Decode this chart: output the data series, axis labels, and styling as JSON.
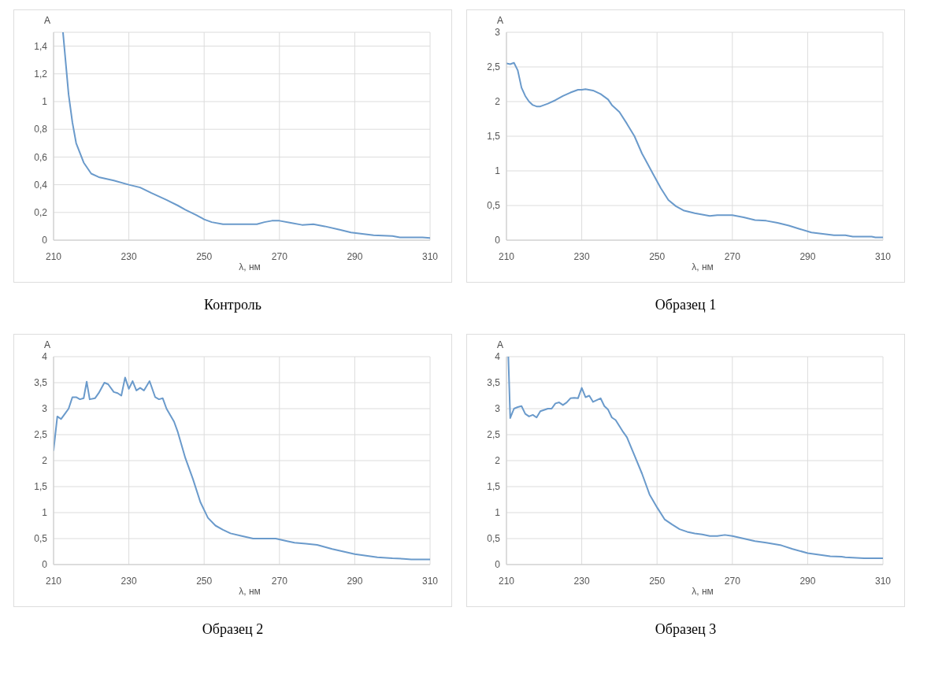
{
  "chart_data": [
    {
      "type": "line",
      "title": "Контроль",
      "xlabel": "λ, нм",
      "ylabel": "A",
      "xlim": [
        210,
        310
      ],
      "xticks": [
        210,
        230,
        250,
        270,
        290,
        310
      ],
      "ylim": [
        0,
        1.5
      ],
      "yticks": [
        0,
        {
          "value": 0.2,
          "label": "0,2"
        },
        {
          "value": 0.4,
          "label": "0,4"
        },
        {
          "value": 0.6,
          "label": "0,6"
        },
        {
          "value": 0.8,
          "label": "0,8"
        },
        1,
        {
          "value": 1.2,
          "label": "1,2"
        },
        {
          "value": 1.4,
          "label": "1,4"
        }
      ],
      "grid": true,
      "marker": "none",
      "line_style": "solid",
      "series": [
        {
          "color": "#6a9acb",
          "x": [
            212.5,
            214,
            215,
            216,
            218,
            220,
            222,
            226,
            230,
            233,
            236,
            240,
            243,
            245,
            248,
            250,
            252,
            255,
            258,
            264,
            266,
            268,
            270,
            273,
            276,
            279,
            282,
            286,
            289,
            292,
            295,
            300,
            302,
            308,
            310
          ],
          "values": [
            1.5,
            1.05,
            0.85,
            0.7,
            0.56,
            0.48,
            0.455,
            0.43,
            0.4,
            0.38,
            0.34,
            0.29,
            0.25,
            0.22,
            0.18,
            0.15,
            0.13,
            0.115,
            0.115,
            0.115,
            0.13,
            0.14,
            0.14,
            0.125,
            0.11,
            0.115,
            0.1,
            0.075,
            0.055,
            0.045,
            0.035,
            0.03,
            0.02,
            0.02,
            0.015
          ]
        }
      ]
    },
    {
      "type": "line",
      "title": "Образец 1",
      "xlabel": "λ, нм",
      "ylabel": "A",
      "xlim": [
        210,
        310
      ],
      "xticks": [
        210,
        230,
        250,
        270,
        290,
        310
      ],
      "ylim": [
        0,
        3
      ],
      "yticks": [
        0,
        {
          "value": 0.5,
          "label": "0,5"
        },
        1,
        {
          "value": 1.5,
          "label": "1,5"
        },
        2,
        {
          "value": 2.5,
          "label": "2,5"
        },
        3
      ],
      "grid": true,
      "marker": "none",
      "line_style": "solid",
      "series": [
        {
          "color": "#6a9acb",
          "x": [
            210,
            211,
            212,
            213,
            214,
            215,
            216,
            217,
            218,
            219,
            221,
            223,
            225,
            227,
            229,
            230,
            231,
            233,
            235,
            237,
            238,
            240,
            242,
            244,
            246,
            247,
            249,
            251,
            253,
            255,
            257,
            260,
            262,
            264,
            266,
            270,
            273,
            276,
            279,
            282,
            285,
            288,
            291,
            294,
            297,
            300,
            302,
            307,
            308,
            310
          ],
          "values": [
            2.55,
            2.54,
            2.56,
            2.45,
            2.2,
            2.08,
            2.0,
            1.95,
            1.93,
            1.93,
            1.97,
            2.02,
            2.08,
            2.13,
            2.17,
            2.17,
            2.18,
            2.16,
            2.11,
            2.03,
            1.95,
            1.85,
            1.68,
            1.5,
            1.25,
            1.15,
            0.95,
            0.75,
            0.58,
            0.49,
            0.43,
            0.39,
            0.37,
            0.35,
            0.36,
            0.36,
            0.33,
            0.29,
            0.28,
            0.25,
            0.21,
            0.16,
            0.11,
            0.09,
            0.07,
            0.07,
            0.05,
            0.05,
            0.04,
            0.04
          ]
        }
      ]
    },
    {
      "type": "line",
      "title": "Образец 2",
      "xlabel": "λ, нм",
      "ylabel": "A",
      "xlim": [
        210,
        310
      ],
      "xticks": [
        210,
        230,
        250,
        270,
        290,
        310
      ],
      "ylim": [
        0,
        4
      ],
      "yticks": [
        0,
        {
          "value": 0.5,
          "label": "0,5"
        },
        1,
        {
          "value": 1.5,
          "label": "1,5"
        },
        2,
        {
          "value": 2.5,
          "label": "2,5"
        },
        3,
        {
          "value": 3.5,
          "label": "3,5"
        },
        4
      ],
      "grid": true,
      "marker": "none",
      "line_style": "solid",
      "series": [
        {
          "color": "#6a9acb",
          "x": [
            210,
            211,
            212,
            213,
            214,
            215,
            216,
            217,
            218,
            218.8,
            219.6,
            221,
            222,
            223.5,
            224.5,
            226,
            227,
            228,
            229,
            230,
            231,
            232,
            233,
            234,
            235.5,
            237,
            238,
            239,
            240,
            242,
            243,
            245,
            247,
            249,
            251,
            253,
            255,
            257,
            260,
            263,
            266,
            269,
            272,
            274,
            277,
            280,
            284,
            287,
            290,
            293,
            296,
            300,
            303,
            305,
            310
          ],
          "values": [
            2.2,
            2.85,
            2.8,
            2.9,
            3.0,
            3.22,
            3.22,
            3.18,
            3.2,
            3.52,
            3.18,
            3.2,
            3.3,
            3.5,
            3.47,
            3.32,
            3.3,
            3.25,
            3.6,
            3.38,
            3.53,
            3.35,
            3.4,
            3.35,
            3.53,
            3.22,
            3.18,
            3.2,
            3.0,
            2.75,
            2.55,
            2.05,
            1.65,
            1.2,
            0.9,
            0.75,
            0.67,
            0.6,
            0.55,
            0.5,
            0.5,
            0.5,
            0.45,
            0.42,
            0.4,
            0.38,
            0.3,
            0.25,
            0.2,
            0.17,
            0.14,
            0.12,
            0.11,
            0.1,
            0.1
          ]
        }
      ]
    },
    {
      "type": "line",
      "title": "Образец 3",
      "xlabel": "λ, нм",
      "ylabel": "A",
      "xlim": [
        210,
        310
      ],
      "xticks": [
        210,
        230,
        250,
        270,
        290,
        310
      ],
      "ylim": [
        0,
        4
      ],
      "yticks": [
        0,
        {
          "value": 0.5,
          "label": "0,5"
        },
        1,
        {
          "value": 1.5,
          "label": "1,5"
        },
        2,
        {
          "value": 2.5,
          "label": "2,5"
        },
        3,
        {
          "value": 3.5,
          "label": "3,5"
        },
        4
      ],
      "grid": true,
      "marker": "none",
      "line_style": "solid",
      "series": [
        {
          "color": "#6a9acb",
          "x": [
            210.5,
            211,
            212,
            213,
            214,
            215,
            216,
            217,
            218,
            219,
            221,
            222,
            223,
            224,
            225,
            226,
            227,
            228,
            229,
            230,
            231,
            232,
            233,
            235,
            236,
            237,
            238,
            239,
            241,
            242,
            244,
            246,
            248,
            250,
            252,
            254,
            256,
            258,
            260,
            262,
            264,
            266,
            268,
            270,
            273,
            276,
            279,
            283,
            286,
            290,
            293,
            296,
            299,
            300,
            303,
            305,
            310
          ],
          "values": [
            4.0,
            2.82,
            3.0,
            3.03,
            3.05,
            2.9,
            2.85,
            2.88,
            2.83,
            2.95,
            3.0,
            3.0,
            3.1,
            3.12,
            3.07,
            3.12,
            3.2,
            3.21,
            3.2,
            3.4,
            3.22,
            3.25,
            3.13,
            3.2,
            3.05,
            2.98,
            2.83,
            2.78,
            2.55,
            2.45,
            2.1,
            1.75,
            1.35,
            1.1,
            0.87,
            0.77,
            0.68,
            0.63,
            0.6,
            0.58,
            0.55,
            0.55,
            0.57,
            0.55,
            0.5,
            0.45,
            0.42,
            0.37,
            0.3,
            0.22,
            0.19,
            0.16,
            0.15,
            0.14,
            0.13,
            0.12,
            0.12
          ]
        }
      ]
    }
  ]
}
